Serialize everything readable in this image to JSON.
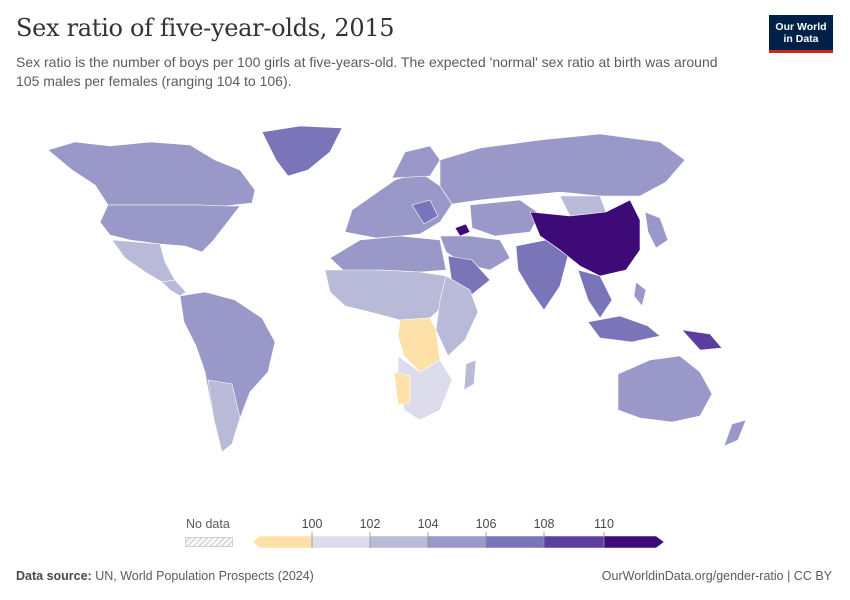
{
  "title": "Sex ratio of five-year-olds, 2015",
  "subtitle": "Sex ratio is the number of boys per 100 girls at five-years-old. The expected 'normal' sex ratio at birth was around 105 males per females (ranging 104 to 106).",
  "logo": {
    "line1": "Our World",
    "line2": "in Data"
  },
  "legend": {
    "no_data_label": "No data",
    "ticks": [
      "100",
      "102",
      "104",
      "106",
      "108",
      "110"
    ],
    "colors": {
      "below_100": "#fde1a9",
      "100_102": "#dcdcec",
      "102_104": "#b9b9d8",
      "104_106": "#9a98c8",
      "106_108": "#7a74b8",
      "108_110": "#5b3fa0",
      "above_110": "#3e0a78"
    }
  },
  "footer": {
    "source_label": "Data source:",
    "source_text": "UN, World Population Prospects (2024)",
    "url": "OurWorldinData.org/gender-ratio | CC BY"
  }
}
